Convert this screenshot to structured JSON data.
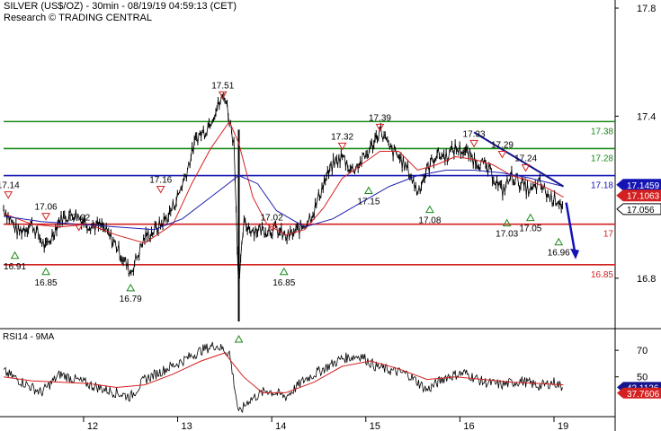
{
  "header": {
    "title": "SILVER (US$/OZ) - 30min - 08/19/19 04:59:13 (CET)",
    "subtitle": "Research © TRADING CENTRAL"
  },
  "colors": {
    "price": "#000000",
    "ma_fast": "#d42020",
    "ma_slow": "#2020b0",
    "support": "#d42020",
    "resistance": "#1a8a1a",
    "pivot": "#1414b4",
    "trendline": "#14148c",
    "arrow": "#1414b4"
  },
  "chart_data": [
    {
      "type": "line",
      "panel": "price",
      "x_ticks": [
        {
          "label": "12",
          "t": 11.85
        },
        {
          "label": "13",
          "t": 12.85
        },
        {
          "label": "14",
          "t": 13.85
        },
        {
          "label": "15",
          "t": 14.85
        },
        {
          "label": "16",
          "t": 15.85
        },
        {
          "label": "19",
          "t": 16.85
        }
      ],
      "xlim": [
        11.0,
        17.5
      ],
      "ylim": [
        16.62,
        17.83
      ],
      "y_ticks": [
        "17.8",
        "17.4",
        "16.8"
      ],
      "price_close": [
        [
          11.0,
          17.06
        ],
        [
          11.15,
          16.97
        ],
        [
          11.3,
          17.0
        ],
        [
          11.45,
          16.91
        ],
        [
          11.6,
          17.02
        ],
        [
          11.75,
          17.04
        ],
        [
          11.9,
          17.0
        ],
        [
          12.05,
          16.99
        ],
        [
          12.2,
          16.92
        ],
        [
          12.35,
          16.82
        ],
        [
          12.5,
          16.95
        ],
        [
          12.65,
          16.99
        ],
        [
          12.75,
          17.03
        ],
        [
          12.85,
          17.1
        ],
        [
          12.95,
          17.2
        ],
        [
          13.05,
          17.32
        ],
        [
          13.15,
          17.35
        ],
        [
          13.25,
          17.42
        ],
        [
          13.35,
          17.48
        ],
        [
          13.45,
          17.3
        ],
        [
          13.5,
          16.75
        ],
        [
          13.55,
          17.0
        ],
        [
          13.65,
          16.98
        ],
        [
          13.8,
          16.98
        ],
        [
          13.9,
          16.98
        ],
        [
          14.0,
          16.95
        ],
        [
          14.1,
          16.97
        ],
        [
          14.2,
          17.0
        ],
        [
          14.3,
          17.05
        ],
        [
          14.4,
          17.15
        ],
        [
          14.5,
          17.22
        ],
        [
          14.6,
          17.25
        ],
        [
          14.7,
          17.2
        ],
        [
          14.8,
          17.23
        ],
        [
          14.9,
          17.28
        ],
        [
          15.0,
          17.35
        ],
        [
          15.05,
          17.32
        ],
        [
          15.1,
          17.28
        ],
        [
          15.2,
          17.25
        ],
        [
          15.3,
          17.2
        ],
        [
          15.4,
          17.12
        ],
        [
          15.5,
          17.2
        ],
        [
          15.6,
          17.26
        ],
        [
          15.7,
          17.25
        ],
        [
          15.8,
          17.28
        ],
        [
          15.9,
          17.27
        ],
        [
          16.0,
          17.24
        ],
        [
          16.1,
          17.22
        ],
        [
          16.2,
          17.18
        ],
        [
          16.3,
          17.12
        ],
        [
          16.4,
          17.18
        ],
        [
          16.5,
          17.15
        ],
        [
          16.6,
          17.12
        ],
        [
          16.7,
          17.15
        ],
        [
          16.8,
          17.1
        ],
        [
          16.9,
          17.09
        ],
        [
          16.95,
          17.06
        ]
      ],
      "ma_fast": [
        [
          11.0,
          17.04
        ],
        [
          11.3,
          17.0
        ],
        [
          11.6,
          16.99
        ],
        [
          11.9,
          17.0
        ],
        [
          12.2,
          16.96
        ],
        [
          12.5,
          16.93
        ],
        [
          12.8,
          17.0
        ],
        [
          13.0,
          17.15
        ],
        [
          13.2,
          17.28
        ],
        [
          13.4,
          17.38
        ],
        [
          13.5,
          17.3
        ],
        [
          13.65,
          17.1
        ],
        [
          13.8,
          17.0
        ],
        [
          14.0,
          16.96
        ],
        [
          14.2,
          16.98
        ],
        [
          14.4,
          17.06
        ],
        [
          14.6,
          17.17
        ],
        [
          14.8,
          17.22
        ],
        [
          15.0,
          17.27
        ],
        [
          15.2,
          17.27
        ],
        [
          15.4,
          17.2
        ],
        [
          15.6,
          17.22
        ],
        [
          15.8,
          17.25
        ],
        [
          16.0,
          17.24
        ],
        [
          16.2,
          17.22
        ],
        [
          16.4,
          17.18
        ],
        [
          16.6,
          17.16
        ],
        [
          16.8,
          17.13
        ],
        [
          16.95,
          17.1
        ]
      ],
      "ma_slow": [
        [
          11.0,
          17.03
        ],
        [
          11.4,
          17.01
        ],
        [
          11.8,
          17.0
        ],
        [
          12.2,
          16.99
        ],
        [
          12.6,
          16.98
        ],
        [
          12.9,
          17.02
        ],
        [
          13.2,
          17.1
        ],
        [
          13.5,
          17.18
        ],
        [
          13.7,
          17.15
        ],
        [
          13.9,
          17.05
        ],
        [
          14.2,
          16.99
        ],
        [
          14.5,
          17.02
        ],
        [
          14.8,
          17.08
        ],
        [
          15.1,
          17.14
        ],
        [
          15.4,
          17.18
        ],
        [
          15.7,
          17.2
        ],
        [
          16.0,
          17.2
        ],
        [
          16.3,
          17.19
        ],
        [
          16.6,
          17.17
        ],
        [
          16.95,
          17.14
        ]
      ],
      "levels": [
        {
          "value": 17.38,
          "label": "17.38",
          "role": "resistance"
        },
        {
          "value": 17.28,
          "label": "17.28",
          "role": "resistance"
        },
        {
          "value": 17.18,
          "label": "17.18",
          "role": "pivot"
        },
        {
          "value": 17.0,
          "label": "17",
          "role": "support"
        },
        {
          "value": 16.85,
          "label": "16.85",
          "role": "support"
        }
      ],
      "price_labels": [
        {
          "value": 17.1459,
          "label": "17.1459",
          "color": "#1414b4"
        },
        {
          "value": 17.1063,
          "label": "17.1063",
          "color": "#d42020"
        },
        {
          "value": 17.056,
          "label": "17.056",
          "color": "#ffffff"
        }
      ],
      "highs": [
        {
          "t": 11.05,
          "v": 17.14,
          "label": "17.14"
        },
        {
          "t": 11.45,
          "v": 17.06,
          "label": "17.06"
        },
        {
          "t": 11.8,
          "v": 17.02,
          "label": "17.02"
        },
        {
          "t": 12.67,
          "v": 17.16,
          "label": "17.16"
        },
        {
          "t": 13.33,
          "v": 17.51,
          "label": "17.51"
        },
        {
          "t": 13.85,
          "v": 17.02,
          "label": "17.02"
        },
        {
          "t": 14.6,
          "v": 17.32,
          "label": "17.32"
        },
        {
          "t": 15.0,
          "v": 17.39,
          "label": "17.39"
        },
        {
          "t": 16.0,
          "v": 17.33,
          "label": "17.33"
        },
        {
          "t": 16.3,
          "v": 17.29,
          "label": "17.29"
        },
        {
          "t": 16.55,
          "v": 17.24,
          "label": "17.24"
        }
      ],
      "lows": [
        {
          "t": 11.12,
          "v": 16.91,
          "label": "16.91"
        },
        {
          "t": 11.45,
          "v": 16.85,
          "label": "16.85"
        },
        {
          "t": 12.35,
          "v": 16.79,
          "label": "16.79"
        },
        {
          "t": 13.5,
          "v": 16.6,
          "label": ""
        },
        {
          "t": 13.98,
          "v": 16.85,
          "label": "16.85"
        },
        {
          "t": 14.88,
          "v": 17.15,
          "label": "17.15"
        },
        {
          "t": 15.53,
          "v": 17.08,
          "label": "17.08"
        },
        {
          "t": 16.35,
          "v": 17.03,
          "label": "17.03"
        },
        {
          "t": 16.6,
          "v": 17.05,
          "label": "17.05"
        },
        {
          "t": 16.9,
          "v": 16.96,
          "label": "16.96"
        }
      ],
      "trendline": [
        [
          16.0,
          17.34
        ],
        [
          16.95,
          17.14
        ]
      ],
      "projection": [
        [
          16.98,
          17.08
        ],
        [
          17.08,
          16.88
        ]
      ]
    },
    {
      "type": "line",
      "panel": "indicator",
      "title": "RSI14 - 9MA",
      "xlim": [
        11.0,
        17.5
      ],
      "ylim": [
        20,
        85
      ],
      "y_ticks": [
        "70",
        "50"
      ],
      "rsi": [
        [
          11.0,
          54
        ],
        [
          11.2,
          46
        ],
        [
          11.4,
          38
        ],
        [
          11.6,
          52
        ],
        [
          11.8,
          47
        ],
        [
          12.0,
          42
        ],
        [
          12.2,
          38
        ],
        [
          12.35,
          35
        ],
        [
          12.5,
          48
        ],
        [
          12.7,
          55
        ],
        [
          12.9,
          62
        ],
        [
          13.1,
          70
        ],
        [
          13.25,
          74
        ],
        [
          13.4,
          68
        ],
        [
          13.5,
          22
        ],
        [
          13.6,
          32
        ],
        [
          13.8,
          40
        ],
        [
          14.0,
          35
        ],
        [
          14.2,
          48
        ],
        [
          14.4,
          56
        ],
        [
          14.6,
          64
        ],
        [
          14.8,
          66
        ],
        [
          14.95,
          58
        ],
        [
          15.1,
          55
        ],
        [
          15.3,
          52
        ],
        [
          15.5,
          40
        ],
        [
          15.7,
          50
        ],
        [
          15.9,
          53
        ],
        [
          16.1,
          46
        ],
        [
          16.3,
          44
        ],
        [
          16.5,
          47
        ],
        [
          16.7,
          43
        ],
        [
          16.85,
          46
        ],
        [
          16.95,
          42
        ]
      ],
      "rsi_ma": [
        [
          11.0,
          50
        ],
        [
          11.3,
          47
        ],
        [
          11.6,
          46
        ],
        [
          11.9,
          45
        ],
        [
          12.2,
          42
        ],
        [
          12.5,
          44
        ],
        [
          12.8,
          52
        ],
        [
          13.1,
          62
        ],
        [
          13.35,
          68
        ],
        [
          13.55,
          50
        ],
        [
          13.75,
          38
        ],
        [
          14.0,
          38
        ],
        [
          14.3,
          46
        ],
        [
          14.6,
          58
        ],
        [
          14.9,
          62
        ],
        [
          15.2,
          56
        ],
        [
          15.5,
          48
        ],
        [
          15.8,
          50
        ],
        [
          16.1,
          48
        ],
        [
          16.4,
          46
        ],
        [
          16.7,
          45
        ],
        [
          16.95,
          44
        ]
      ],
      "value_labels": [
        {
          "value": 42.1126,
          "label": "42.1126",
          "color": "#14148c"
        },
        {
          "value": 37.7606,
          "label": "37.7606",
          "color": "#d42020"
        }
      ]
    }
  ]
}
